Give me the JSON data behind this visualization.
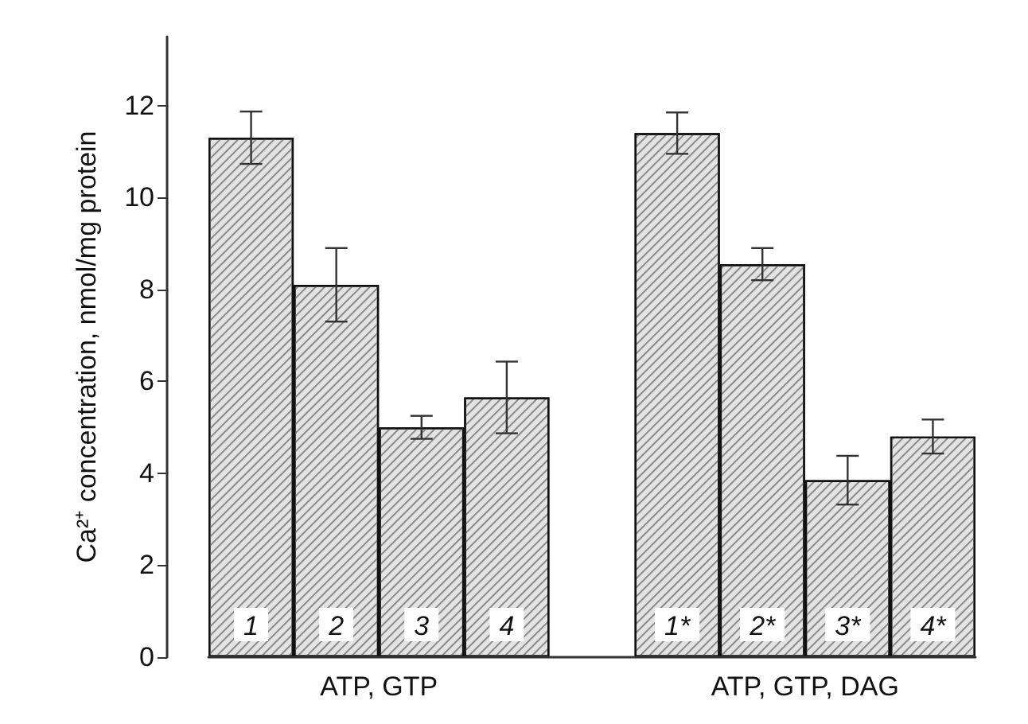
{
  "chart_data": {
    "type": "bar",
    "ylabel": "Ca²⁺ concentration, nmol/mg protein",
    "categories": [
      "1",
      "2",
      "3",
      "4",
      null,
      "1*",
      "2*",
      "3*",
      "4*"
    ],
    "values": [
      11.3,
      8.1,
      5.0,
      5.65,
      null,
      11.4,
      8.55,
      3.85,
      4.8
    ],
    "errors": [
      0.57,
      0.8,
      0.25,
      0.78,
      null,
      0.45,
      0.35,
      0.53,
      0.37
    ],
    "color": "#e3e3e3",
    "ylim": [
      0,
      13.5
    ],
    "yticks": [
      0,
      2,
      4,
      6,
      8,
      10,
      12
    ],
    "annotations": [
      "ATP, GTP",
      "ATP, GTP, DAG"
    ],
    "grid": false
  }
}
